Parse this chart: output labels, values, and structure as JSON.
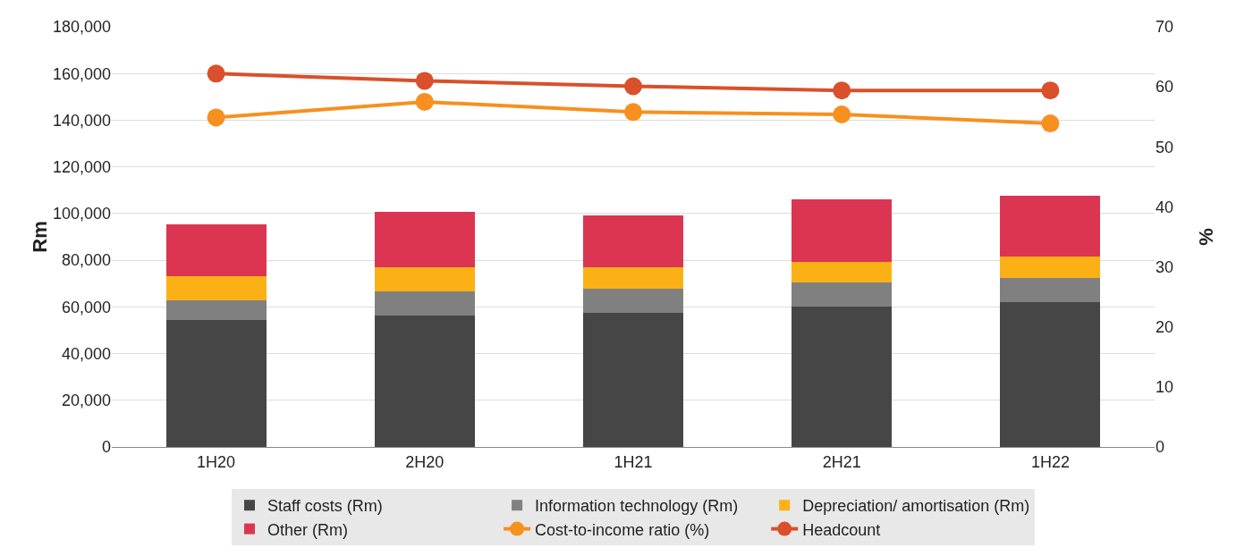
{
  "chart_data": {
    "type": "bar",
    "stacked": true,
    "categories": [
      "1H20",
      "2H20",
      "1H21",
      "2H21",
      "1H22"
    ],
    "ylabel": "Rm",
    "y2label": "%",
    "ylim": [
      0,
      180000
    ],
    "yticks": [
      {
        "value": 0,
        "label": "0"
      },
      {
        "value": 20000,
        "label": "20,000"
      },
      {
        "value": 40000,
        "label": "40,000"
      },
      {
        "value": 60000,
        "label": "60,000"
      },
      {
        "value": 80000,
        "label": "80,000"
      },
      {
        "value": 100000,
        "label": "100,000"
      },
      {
        "value": 120000,
        "label": "120,000"
      },
      {
        "value": 140000,
        "label": "140,000"
      },
      {
        "value": 160000,
        "label": "160,000"
      },
      {
        "value": 180000,
        "label": "180,000"
      }
    ],
    "y2lim": [
      0,
      70
    ],
    "y2ticks": [
      0,
      10,
      20,
      30,
      40,
      50,
      60,
      70
    ],
    "grid": "y",
    "legend": "bottom",
    "marker": "circle",
    "line_style": "solid",
    "series": [
      {
        "name": "Staff costs (Rm)",
        "color": "#464646",
        "values": [
          54300,
          56200,
          57300,
          60000,
          61900
        ]
      },
      {
        "name": "Information technology (Rm)",
        "color": "#808080",
        "values": [
          8400,
          10300,
          10300,
          10300,
          10600
        ]
      },
      {
        "name": "Depreciation/ amortisation (Rm)",
        "color": "#fbb116",
        "values": [
          10600,
          10600,
          9500,
          9100,
          9200
        ]
      },
      {
        "name": "Other (Rm)",
        "color": "#dc3552",
        "values": [
          22000,
          23500,
          22000,
          26600,
          25800
        ]
      },
      {
        "name": "Cost-to-income ratio (%)",
        "color": "#f7901e",
        "type": "line",
        "axis": "y2",
        "values": [
          54.9,
          57.5,
          55.8,
          55.4,
          53.9
        ]
      },
      {
        "name": "Headcount",
        "color": "#d9502a",
        "type": "line",
        "axis": "y2",
        "values": [
          62.2,
          61.0,
          60.1,
          59.4,
          59.4
        ]
      }
    ]
  }
}
